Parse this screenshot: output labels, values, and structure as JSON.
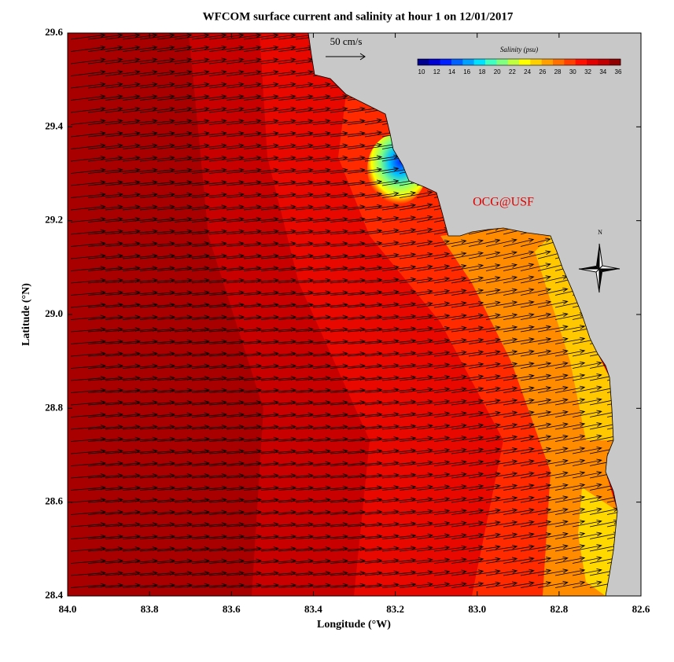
{
  "chart_data": {
    "type": "map",
    "title": "WFCOM surface current and salinity at hour 1 on 12/01/2017",
    "x_label": "Longitude (°W)",
    "y_label": "Latitude (°N)",
    "xlim": [
      84.0,
      82.6
    ],
    "xticks": [
      {
        "value": 84.0,
        "label": "84.0"
      },
      83.8,
      83.6,
      83.4,
      83.2,
      {
        "value": 83.0,
        "label": "83.0"
      },
      82.8,
      82.6
    ],
    "ylim": [
      28.4,
      29.6
    ],
    "yticks": [
      28.4,
      28.6,
      28.8,
      {
        "value": 29.0,
        "label": "29.0"
      },
      29.2,
      29.4,
      29.6
    ],
    "scale_arrow_label": "50 cm/s",
    "annotation": "OCG@USF",
    "compass_label": "N",
    "colorbar": {
      "label": "Salinity (psu)",
      "lim": [
        10,
        36
      ],
      "ticks": [
        10,
        12,
        14,
        16,
        18,
        20,
        22,
        24,
        26,
        28,
        30,
        32,
        34,
        36
      ],
      "colors": [
        "#00008f",
        "#0000d0",
        "#0020ff",
        "#0060ff",
        "#00a0ff",
        "#00e0ff",
        "#40ffc0",
        "#80ff80",
        "#c0ff40",
        "#ffff00",
        "#ffd000",
        "#ffa000",
        "#ff7000",
        "#ff4000",
        "#ff1000",
        "#e00000",
        "#c00000",
        "#900000"
      ]
    }
  }
}
